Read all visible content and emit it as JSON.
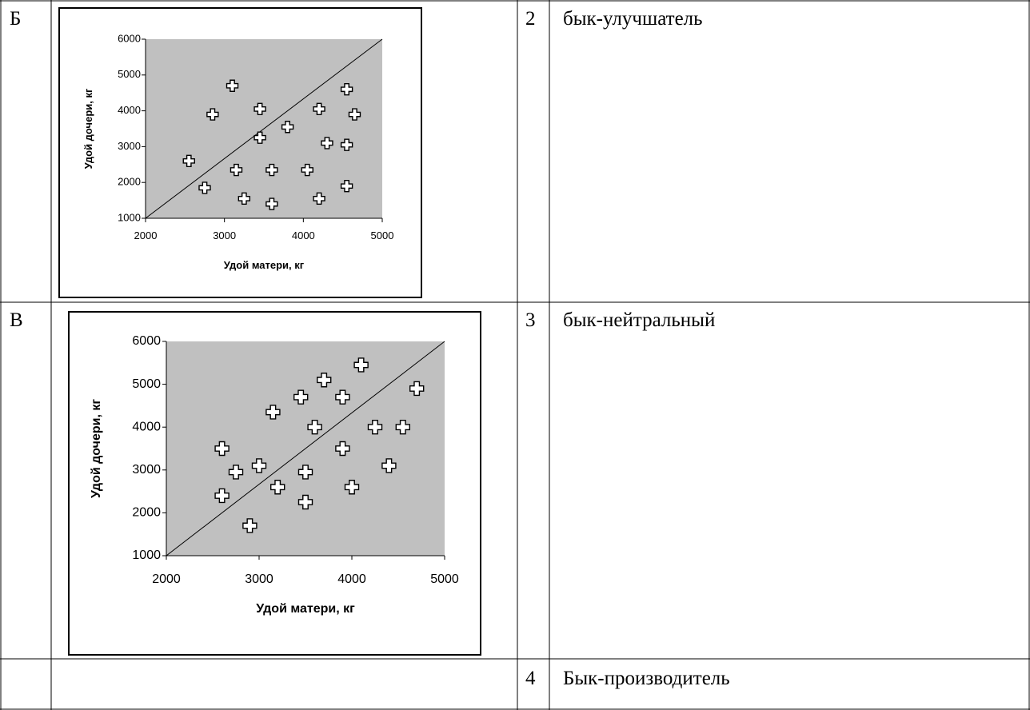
{
  "rows": [
    {
      "label": "Б",
      "number": "2",
      "description": "бык-улучшатель"
    },
    {
      "label": "В",
      "number": "3",
      "description": "бык-нейтральный"
    },
    {
      "label": "",
      "number": "4",
      "description": "Бык-производитель"
    }
  ],
  "chart_data": [
    {
      "type": "scatter",
      "title": "",
      "xlabel": "Удой матери, кг",
      "ylabel": "Удой дочери, кг",
      "xlim": [
        2000,
        5000
      ],
      "ylim": [
        1000,
        6000
      ],
      "xticks": [
        "2000",
        "3000",
        "4000",
        "5000"
      ],
      "yticks": [
        "1000",
        "2000",
        "3000",
        "4000",
        "5000",
        "6000"
      ],
      "plot_background": "#c0c0c0",
      "grid": false,
      "reference_line": {
        "x": [
          2000,
          5000
        ],
        "y": [
          1000,
          6000
        ]
      },
      "points": [
        {
          "x": 2550,
          "y": 2600
        },
        {
          "x": 2750,
          "y": 1850
        },
        {
          "x": 2850,
          "y": 3900
        },
        {
          "x": 3100,
          "y": 4700
        },
        {
          "x": 3150,
          "y": 2350
        },
        {
          "x": 3250,
          "y": 1550
        },
        {
          "x": 3450,
          "y": 4050
        },
        {
          "x": 3450,
          "y": 3250
        },
        {
          "x": 3600,
          "y": 2350
        },
        {
          "x": 3600,
          "y": 1400
        },
        {
          "x": 3800,
          "y": 3550
        },
        {
          "x": 4050,
          "y": 2350
        },
        {
          "x": 4200,
          "y": 4050
        },
        {
          "x": 4200,
          "y": 1550
        },
        {
          "x": 4300,
          "y": 3100
        },
        {
          "x": 4550,
          "y": 4600
        },
        {
          "x": 4550,
          "y": 3050
        },
        {
          "x": 4550,
          "y": 1900
        },
        {
          "x": 4650,
          "y": 3900
        }
      ]
    },
    {
      "type": "scatter",
      "title": "",
      "xlabel": "Удой матери, кг",
      "ylabel": "Удой дочери, кг",
      "xlim": [
        2000,
        5000
      ],
      "ylim": [
        1000,
        6000
      ],
      "xticks": [
        "2000",
        "3000",
        "4000",
        "5000"
      ],
      "yticks": [
        "1000",
        "2000",
        "3000",
        "4000",
        "5000",
        "6000"
      ],
      "plot_background": "#c0c0c0",
      "grid": false,
      "reference_line": {
        "x": [
          2000,
          5000
        ],
        "y": [
          1000,
          6000
        ]
      },
      "points": [
        {
          "x": 2600,
          "y": 3500
        },
        {
          "x": 2600,
          "y": 2400
        },
        {
          "x": 2750,
          "y": 2950
        },
        {
          "x": 2900,
          "y": 1700
        },
        {
          "x": 3000,
          "y": 3100
        },
        {
          "x": 3150,
          "y": 4350
        },
        {
          "x": 3200,
          "y": 2600
        },
        {
          "x": 3450,
          "y": 4700
        },
        {
          "x": 3500,
          "y": 2950
        },
        {
          "x": 3500,
          "y": 2250
        },
        {
          "x": 3600,
          "y": 4000
        },
        {
          "x": 3700,
          "y": 5100
        },
        {
          "x": 3900,
          "y": 4700
        },
        {
          "x": 3900,
          "y": 3500
        },
        {
          "x": 4000,
          "y": 2600
        },
        {
          "x": 4100,
          "y": 5450
        },
        {
          "x": 4250,
          "y": 4000
        },
        {
          "x": 4400,
          "y": 3100
        },
        {
          "x": 4550,
          "y": 4000
        },
        {
          "x": 4700,
          "y": 4900
        }
      ]
    }
  ]
}
